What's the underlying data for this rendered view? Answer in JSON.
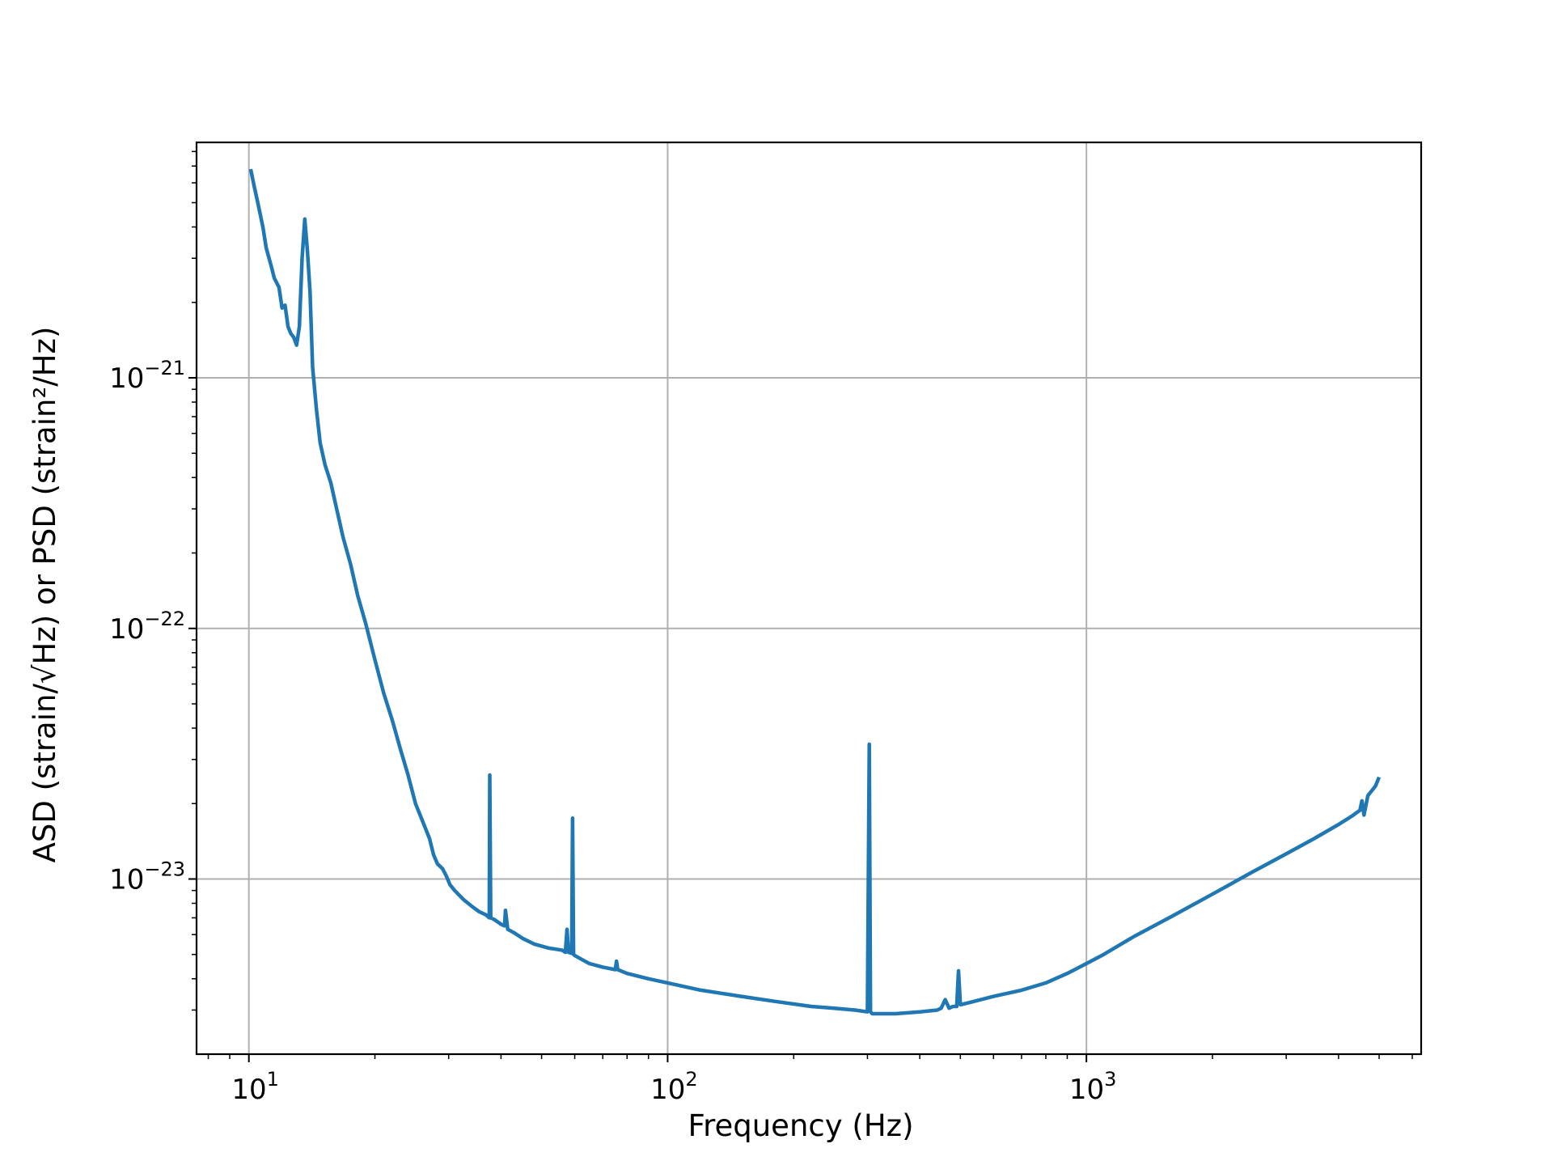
{
  "chart_data": {
    "type": "line",
    "title": "",
    "xlabel": "Frequency (Hz)",
    "ylabel": "ASD (strain/√Hz) or PSD (strain²/Hz)",
    "x_scale": "log",
    "y_scale": "log",
    "xlim": [
      7.5,
      6300
    ],
    "ylim": [
      2e-24,
      8.7e-21
    ],
    "grid": true,
    "series_color": "#1f77b4",
    "x_ticks": [
      {
        "base": "10",
        "exp": "1",
        "value": 10
      },
      {
        "base": "10",
        "exp": "2",
        "value": 100
      },
      {
        "base": "10",
        "exp": "3",
        "value": 1000
      }
    ],
    "y_ticks": [
      {
        "base": "10",
        "exp": "−21",
        "value": 1e-21
      },
      {
        "base": "10",
        "exp": "−22",
        "value": 1e-22
      },
      {
        "base": "10",
        "exp": "−23",
        "value": 1e-23
      }
    ],
    "series": [
      {
        "name": "",
        "x": [
          10.1,
          10.3,
          10.5,
          10.8,
          11.0,
          11.3,
          11.5,
          11.8,
          12.0,
          12.2,
          12.4,
          12.6,
          12.8,
          13.0,
          13.2,
          13.4,
          13.6,
          13.8,
          14.0,
          14.2,
          14.5,
          14.8,
          15.2,
          15.7,
          16.2,
          16.8,
          17.5,
          18.2,
          19.0,
          20.0,
          21.0,
          22.0,
          23.0,
          24.0,
          25.0,
          26.0,
          27.0,
          27.6,
          28.2,
          29.0,
          29.6,
          30.2,
          31.0,
          32.5,
          34.0,
          35.5,
          36.8,
          37.5,
          37.6,
          37.8,
          38.5,
          40.0,
          40.8,
          41.0,
          41.5,
          43.0,
          45.0,
          48.0,
          50.0,
          52.0,
          54.0,
          56.0,
          57.0,
          57.5,
          58.0,
          59.0,
          59.3,
          59.6,
          60.0,
          62.0,
          65.0,
          70.0,
          75.0,
          75.5,
          76.0,
          80.0,
          90.0,
          100.0,
          120.0,
          150.0,
          180.0,
          220.0,
          250.0,
          280.0,
          300.0,
          303.0,
          305.0,
          308.0,
          320.0,
          350.0,
          400.0,
          440.0,
          450.0,
          460.0,
          470.0,
          480.0,
          490.0,
          495.0,
          500.0,
          520.0,
          560.0,
          600.0,
          700.0,
          800.0,
          900.0,
          1000.0,
          1100.0,
          1300.0,
          1600.0,
          2000.0,
          2500.0,
          3000.0,
          3500.0,
          4000.0,
          4300.0,
          4500.0,
          4550.0,
          4600.0,
          4700.0,
          4900.0,
          5000.0
        ],
        "y": [
          6.8e-21,
          5.8e-21,
          5e-21,
          4e-21,
          3.3e-21,
          2.8e-21,
          2.5e-21,
          2.3e-21,
          1.9e-21,
          1.95e-21,
          1.6e-21,
          1.5e-21,
          1.45e-21,
          1.35e-21,
          1.6e-21,
          3e-21,
          4.3e-21,
          3.2e-21,
          2.2e-21,
          1.1e-21,
          7.5e-22,
          5.5e-22,
          4.5e-22,
          3.8e-22,
          3e-22,
          2.3e-22,
          1.8e-22,
          1.35e-22,
          1.05e-22,
          7.5e-23,
          5.5e-23,
          4.3e-23,
          3.3e-23,
          2.6e-23,
          2e-23,
          1.7e-23,
          1.45e-23,
          1.25e-23,
          1.15e-23,
          1.1e-23,
          1.03e-23,
          9.5e-24,
          9e-24,
          8.3e-24,
          7.8e-24,
          7.4e-24,
          7.2e-24,
          7e-24,
          2.6e-23,
          7e-24,
          6.9e-24,
          6.6e-24,
          6.5e-24,
          7.5e-24,
          6.3e-24,
          6.1e-24,
          5.8e-24,
          5.5e-24,
          5.4e-24,
          5.3e-24,
          5.25e-24,
          5.2e-24,
          5.1e-24,
          6.3e-24,
          5.1e-24,
          5.05e-24,
          1.75e-23,
          5e-24,
          4.95e-24,
          4.8e-24,
          4.6e-24,
          4.45e-24,
          4.35e-24,
          4.7e-24,
          4.35e-24,
          4.2e-24,
          4e-24,
          3.85e-24,
          3.6e-24,
          3.4e-24,
          3.25e-24,
          3.1e-24,
          3.05e-24,
          3e-24,
          2.95e-24,
          3.45e-23,
          2.95e-24,
          2.9e-24,
          2.9e-24,
          2.9e-24,
          2.95e-24,
          3e-24,
          3.05e-24,
          3.3e-24,
          3.05e-24,
          3.1e-24,
          3.1e-24,
          4.3e-24,
          3.15e-24,
          3.2e-24,
          3.3e-24,
          3.4e-24,
          3.6e-24,
          3.85e-24,
          4.2e-24,
          4.6e-24,
          5e-24,
          5.9e-24,
          7.1e-24,
          8.7e-24,
          1.07e-23,
          1.26e-23,
          1.45e-23,
          1.65e-23,
          1.78e-23,
          1.88e-23,
          2.05e-23,
          1.8e-23,
          2.15e-23,
          2.35e-23,
          2.55e-23
        ]
      }
    ]
  }
}
